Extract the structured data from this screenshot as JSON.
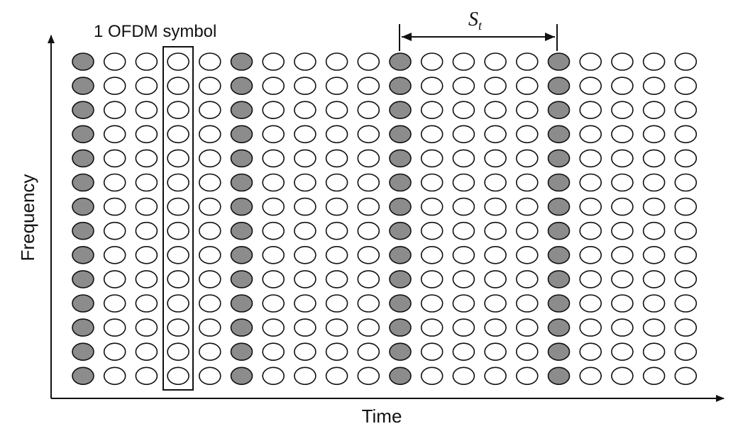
{
  "labels": {
    "symbol_box": "1 OFDM symbol",
    "spacing_main": "S",
    "spacing_sub": "t",
    "x_axis": "Time",
    "y_axis": "Frequency"
  },
  "grid": {
    "columns": 20,
    "rows": 14,
    "pilot_columns": [
      0,
      5,
      10,
      15
    ],
    "highlighted_column": 3
  },
  "colors": {
    "pilot_fill": "#8c8c8c",
    "data_fill": "#ffffff",
    "stroke": "#111111"
  }
}
